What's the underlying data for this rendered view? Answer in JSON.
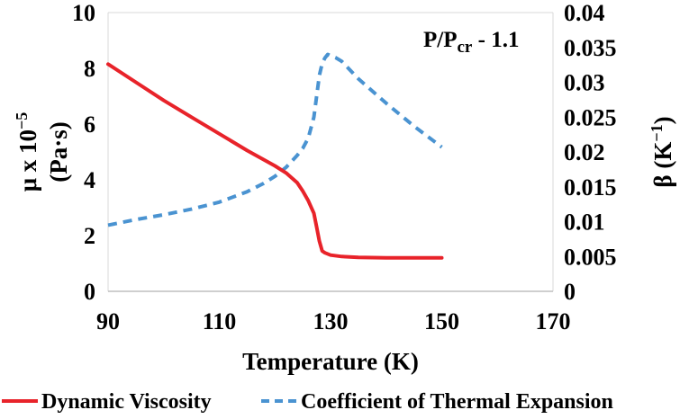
{
  "chart_data": {
    "type": "line",
    "annotation": {
      "main": "P/P",
      "sub": "cr",
      "tail": " - 1.1"
    },
    "xlabel": "Temperature (K)",
    "ylabel_left": {
      "line1": "μ x 10",
      "sup": "−5",
      "line2": "(Pa·s)"
    },
    "ylabel_right": {
      "main": "β (K",
      "sup": "−1",
      "close": ")"
    },
    "xlim": [
      90,
      170
    ],
    "x_ticks": [
      "90",
      "110",
      "130",
      "150",
      "170"
    ],
    "ylim_left": [
      0,
      10
    ],
    "y_left_ticks": [
      "0",
      "2",
      "4",
      "6",
      "8",
      "10"
    ],
    "ylim_right": [
      0,
      0.04
    ],
    "y_right_ticks": [
      "0",
      "0.005",
      "0.01",
      "0.015",
      "0.02",
      "0.025",
      "0.03",
      "0.035",
      "0.04"
    ],
    "series": [
      {
        "name": "Dynamic Viscosity",
        "axis": "left",
        "color": "#e8232a",
        "style": "solid",
        "x": [
          90,
          95,
          100,
          105,
          110,
          115,
          120,
          122,
          124,
          125,
          126,
          127,
          127.5,
          128,
          128.5,
          129,
          130,
          132,
          135,
          140,
          145,
          150
        ],
        "y": [
          8.15,
          7.5,
          6.85,
          6.25,
          5.65,
          5.05,
          4.5,
          4.25,
          3.9,
          3.6,
          3.25,
          2.8,
          2.3,
          1.8,
          1.45,
          1.38,
          1.3,
          1.25,
          1.22,
          1.2,
          1.2,
          1.2
        ]
      },
      {
        "name": "Coefficient of Thermal Expansion",
        "axis": "right",
        "color": "#4a93d1",
        "style": "dashed",
        "x": [
          90,
          95,
          100,
          105,
          110,
          115,
          118,
          120,
          122,
          124,
          125,
          126,
          127,
          128,
          128.5,
          129,
          129.5,
          130,
          131,
          132,
          135,
          140,
          145,
          150
        ],
        "y": [
          0.0095,
          0.0103,
          0.011,
          0.0118,
          0.0128,
          0.0143,
          0.0155,
          0.0165,
          0.0178,
          0.0195,
          0.0205,
          0.022,
          0.025,
          0.031,
          0.0327,
          0.0335,
          0.034,
          0.0338,
          0.0335,
          0.033,
          0.0305,
          0.027,
          0.0237,
          0.0207
        ]
      }
    ]
  }
}
